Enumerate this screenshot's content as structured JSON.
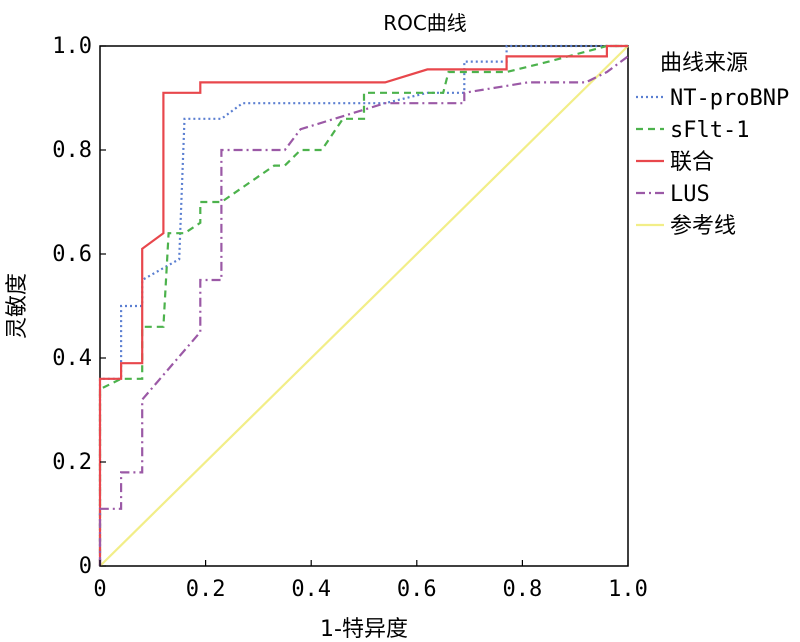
{
  "chart_data": {
    "type": "line",
    "title": "ROC曲线",
    "xlabel": "1-特异度",
    "ylabel": "灵敏度",
    "xlim": [
      0,
      1
    ],
    "ylim": [
      0,
      1
    ],
    "x_ticks": [
      "0",
      "0.2",
      "0.4",
      "0.6",
      "0.8",
      "1.0"
    ],
    "y_ticks": [
      "0",
      "0.2",
      "0.4",
      "0.6",
      "0.8",
      "1.0"
    ],
    "legend_title": "曲线来源",
    "legend_position": "right",
    "grid": false,
    "series": [
      {
        "name": "NT-proBNP",
        "color": "#5b7fd1",
        "dash": "dotted",
        "points": [
          [
            0,
            0
          ],
          [
            0,
            0.36
          ],
          [
            0.04,
            0.36
          ],
          [
            0.04,
            0.5
          ],
          [
            0.08,
            0.5
          ],
          [
            0.08,
            0.55
          ],
          [
            0.15,
            0.59
          ],
          [
            0.16,
            0.86
          ],
          [
            0.23,
            0.86
          ],
          [
            0.27,
            0.89
          ],
          [
            0.54,
            0.89
          ],
          [
            0.62,
            0.91
          ],
          [
            0.69,
            0.91
          ],
          [
            0.69,
            0.97
          ],
          [
            0.77,
            0.97
          ],
          [
            0.77,
            1.0
          ],
          [
            1.0,
            1.0
          ]
        ]
      },
      {
        "name": "sFlt-1",
        "color": "#4cb24c",
        "dash": "dashed",
        "points": [
          [
            0,
            0
          ],
          [
            0,
            0.34
          ],
          [
            0.04,
            0.36
          ],
          [
            0.08,
            0.36
          ],
          [
            0.08,
            0.46
          ],
          [
            0.12,
            0.46
          ],
          [
            0.13,
            0.64
          ],
          [
            0.16,
            0.64
          ],
          [
            0.19,
            0.66
          ],
          [
            0.19,
            0.7
          ],
          [
            0.23,
            0.7
          ],
          [
            0.33,
            0.77
          ],
          [
            0.35,
            0.77
          ],
          [
            0.38,
            0.8
          ],
          [
            0.42,
            0.8
          ],
          [
            0.46,
            0.86
          ],
          [
            0.5,
            0.86
          ],
          [
            0.5,
            0.91
          ],
          [
            0.65,
            0.91
          ],
          [
            0.66,
            0.95
          ],
          [
            0.77,
            0.95
          ],
          [
            0.85,
            0.97
          ],
          [
            0.96,
            1.0
          ],
          [
            1.0,
            1.0
          ]
        ]
      },
      {
        "name": "联合",
        "color": "#e8474c",
        "dash": "solid",
        "points": [
          [
            0,
            0
          ],
          [
            0,
            0.36
          ],
          [
            0.04,
            0.36
          ],
          [
            0.04,
            0.39
          ],
          [
            0.08,
            0.39
          ],
          [
            0.08,
            0.61
          ],
          [
            0.12,
            0.64
          ],
          [
            0.12,
            0.91
          ],
          [
            0.19,
            0.91
          ],
          [
            0.19,
            0.93
          ],
          [
            0.54,
            0.93
          ],
          [
            0.62,
            0.955
          ],
          [
            0.77,
            0.955
          ],
          [
            0.77,
            0.98
          ],
          [
            0.96,
            0.98
          ],
          [
            0.96,
            1.0
          ],
          [
            1.0,
            1.0
          ]
        ]
      },
      {
        "name": "LUS",
        "color": "#9b59a6",
        "dash": "dashdot",
        "points": [
          [
            0,
            0
          ],
          [
            0,
            0.11
          ],
          [
            0.04,
            0.11
          ],
          [
            0.04,
            0.18
          ],
          [
            0.08,
            0.18
          ],
          [
            0.08,
            0.32
          ],
          [
            0.19,
            0.45
          ],
          [
            0.19,
            0.55
          ],
          [
            0.23,
            0.55
          ],
          [
            0.23,
            0.8
          ],
          [
            0.35,
            0.8
          ],
          [
            0.38,
            0.84
          ],
          [
            0.54,
            0.89
          ],
          [
            0.69,
            0.89
          ],
          [
            0.69,
            0.91
          ],
          [
            0.81,
            0.93
          ],
          [
            0.92,
            0.93
          ],
          [
            0.96,
            0.95
          ],
          [
            1.0,
            0.98
          ]
        ]
      },
      {
        "name": "参考线",
        "color": "#f2ee88",
        "dash": "solid",
        "points": [
          [
            0,
            0
          ],
          [
            1,
            1
          ]
        ]
      }
    ]
  }
}
